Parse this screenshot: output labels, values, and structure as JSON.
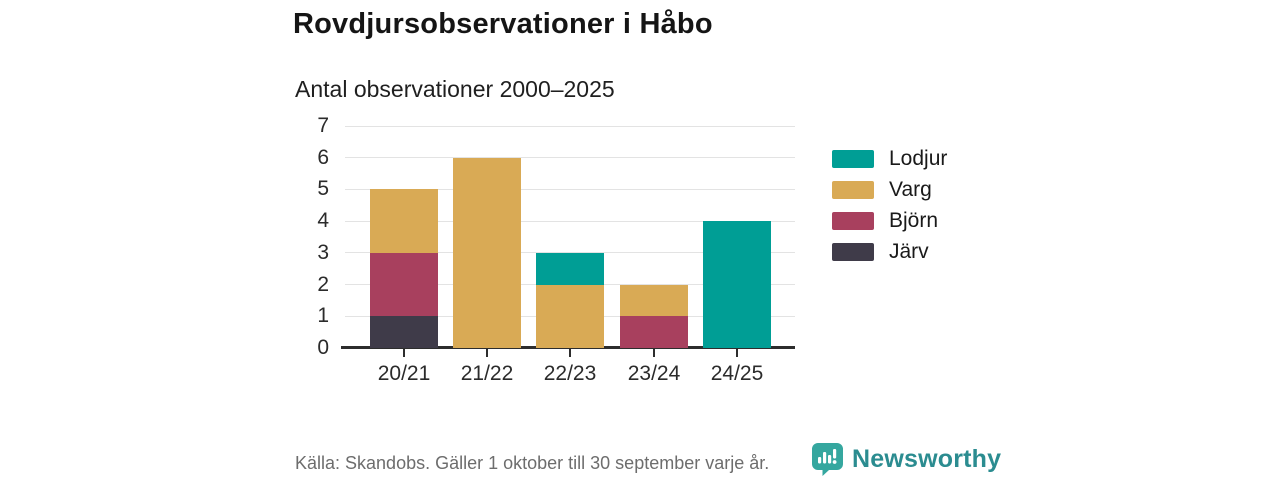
{
  "header": {
    "title": "Rovdjursobservationer i Håbo",
    "subtitle": "Antal observationer 2000–2025"
  },
  "chart_data": {
    "type": "bar",
    "stacked": true,
    "title": "Antal observationer 2000–2025",
    "categories": [
      "20/21",
      "21/22",
      "22/23",
      "23/24",
      "24/25"
    ],
    "series": [
      {
        "name": "Lodjur",
        "color": "#009e95",
        "values": [
          0,
          0,
          1,
          0,
          4
        ]
      },
      {
        "name": "Varg",
        "color": "#d9aa55",
        "values": [
          2,
          6,
          2,
          1,
          0
        ]
      },
      {
        "name": "Björn",
        "color": "#a8405e",
        "values": [
          2,
          0,
          0,
          1,
          0
        ]
      },
      {
        "name": "Järv",
        "color": "#3f3b49",
        "values": [
          1,
          0,
          0,
          0,
          0
        ]
      }
    ],
    "stack_order_bottom_to_top": [
      "Järv",
      "Björn",
      "Varg",
      "Lodjur"
    ],
    "totals": [
      5,
      6,
      3,
      2,
      4
    ],
    "xlabel": "",
    "ylabel": "",
    "ylim": [
      0,
      7
    ],
    "yticks": [
      0,
      1,
      2,
      3,
      4,
      5,
      6,
      7
    ],
    "grid": true,
    "legend_position": "right",
    "legend": [
      "Lodjur",
      "Varg",
      "Björn",
      "Järv"
    ],
    "gridline_color": "#e3e3e3",
    "axis_color": "#2d2d2d"
  },
  "footer": {
    "source": "Källa: Skandobs. Gäller 1 oktober till 30 september varje år.",
    "brand": "Newsworthy",
    "brand_color": "#2b8c90",
    "logo_color": "#35a79f"
  }
}
